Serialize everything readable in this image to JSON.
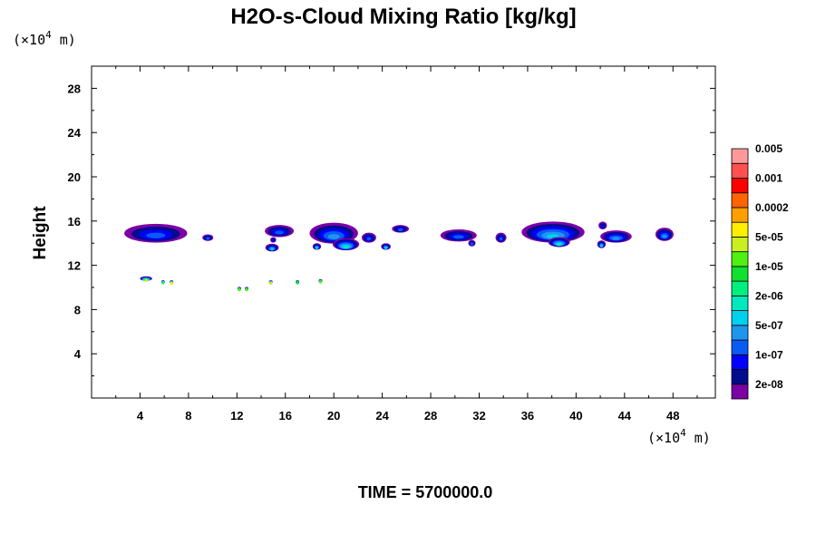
{
  "chart_data": {
    "type": "contour-fill",
    "title": "H2O-s-Cloud Mixing Ratio [kg/kg]",
    "ylabel": "Height",
    "x_unit_label": [
      "(×10",
      "4",
      " m)"
    ],
    "y_unit_label": [
      "(×10",
      "4",
      " m)"
    ],
    "xlim": [
      0,
      51.5
    ],
    "ylim": [
      0,
      30
    ],
    "x_major_ticks": [
      4,
      8,
      12,
      16,
      20,
      24,
      28,
      32,
      36,
      40,
      44,
      48
    ],
    "y_major_ticks": [
      4,
      8,
      12,
      16,
      20,
      24,
      28
    ],
    "time_label": "TIME = 5700000.0",
    "colorbar": {
      "colors": [
        "#7b00a6",
        "#000c8c",
        "#0000ff",
        "#0a5af5",
        "#1e96f0",
        "#00d0f0",
        "#00e8c0",
        "#00f080",
        "#10e030",
        "#50f010",
        "#c8f020",
        "#ffee00",
        "#ffa000",
        "#ff6400",
        "#ff0000",
        "#ff5050",
        "#ff9999"
      ],
      "labels": [
        "2e-08",
        "1e-07",
        "5e-07",
        "2e-06",
        "1e-05",
        "5e-05",
        "0.0002",
        "0.001",
        "0.005"
      ]
    },
    "cloud_features": [
      {
        "x": 5.3,
        "y": 14.9,
        "rx": 2.6,
        "ry": 0.85,
        "level": 3
      },
      {
        "x": 9.6,
        "y": 14.5,
        "rx": 0.45,
        "ry": 0.3,
        "level": 3
      },
      {
        "x": 15.5,
        "y": 15.1,
        "rx": 1.2,
        "ry": 0.55,
        "level": 3
      },
      {
        "x": 15.0,
        "y": 14.3,
        "rx": 0.25,
        "ry": 0.25,
        "level": 2
      },
      {
        "x": 14.9,
        "y": 13.6,
        "rx": 0.55,
        "ry": 0.35,
        "level": 5
      },
      {
        "x": 20.0,
        "y": 14.9,
        "rx": 2.0,
        "ry": 0.95,
        "level": 4
      },
      {
        "x": 21.0,
        "y": 13.9,
        "rx": 1.1,
        "ry": 0.55,
        "level": 6
      },
      {
        "x": 22.9,
        "y": 14.5,
        "rx": 0.6,
        "ry": 0.45,
        "level": 3
      },
      {
        "x": 18.6,
        "y": 13.7,
        "rx": 0.35,
        "ry": 0.3,
        "level": 5
      },
      {
        "x": 24.3,
        "y": 13.7,
        "rx": 0.4,
        "ry": 0.3,
        "level": 5
      },
      {
        "x": 25.5,
        "y": 15.3,
        "rx": 0.7,
        "ry": 0.35,
        "level": 3
      },
      {
        "x": 30.3,
        "y": 14.7,
        "rx": 1.5,
        "ry": 0.55,
        "level": 3
      },
      {
        "x": 31.4,
        "y": 14.0,
        "rx": 0.3,
        "ry": 0.3,
        "level": 3
      },
      {
        "x": 33.8,
        "y": 14.5,
        "rx": 0.45,
        "ry": 0.45,
        "level": 3
      },
      {
        "x": 38.1,
        "y": 15.0,
        "rx": 2.6,
        "ry": 0.95,
        "level": 5
      },
      {
        "x": 38.6,
        "y": 14.1,
        "rx": 0.9,
        "ry": 0.45,
        "level": 6
      },
      {
        "x": 42.2,
        "y": 15.6,
        "rx": 0.35,
        "ry": 0.35,
        "level": 2
      },
      {
        "x": 43.3,
        "y": 14.6,
        "rx": 1.3,
        "ry": 0.55,
        "level": 4
      },
      {
        "x": 42.1,
        "y": 13.9,
        "rx": 0.35,
        "ry": 0.35,
        "level": 5
      },
      {
        "x": 47.3,
        "y": 14.8,
        "rx": 0.75,
        "ry": 0.6,
        "level": 4
      },
      {
        "x": 4.5,
        "y": 10.8,
        "rx": 0.5,
        "ry": 0.2,
        "level": 10
      },
      {
        "x": 5.9,
        "y": 10.5,
        "rx": 0.15,
        "ry": 0.15,
        "level": 7
      },
      {
        "x": 6.6,
        "y": 10.5,
        "rx": 0.15,
        "ry": 0.15,
        "level": 11
      },
      {
        "x": 12.2,
        "y": 9.9,
        "rx": 0.15,
        "ry": 0.15,
        "level": 9
      },
      {
        "x": 12.8,
        "y": 9.9,
        "rx": 0.15,
        "ry": 0.15,
        "level": 9
      },
      {
        "x": 14.8,
        "y": 10.5,
        "rx": 0.15,
        "ry": 0.15,
        "level": 10
      },
      {
        "x": 17.0,
        "y": 10.5,
        "rx": 0.15,
        "ry": 0.15,
        "level": 8
      },
      {
        "x": 18.9,
        "y": 10.6,
        "rx": 0.15,
        "ry": 0.15,
        "level": 9
      }
    ]
  }
}
